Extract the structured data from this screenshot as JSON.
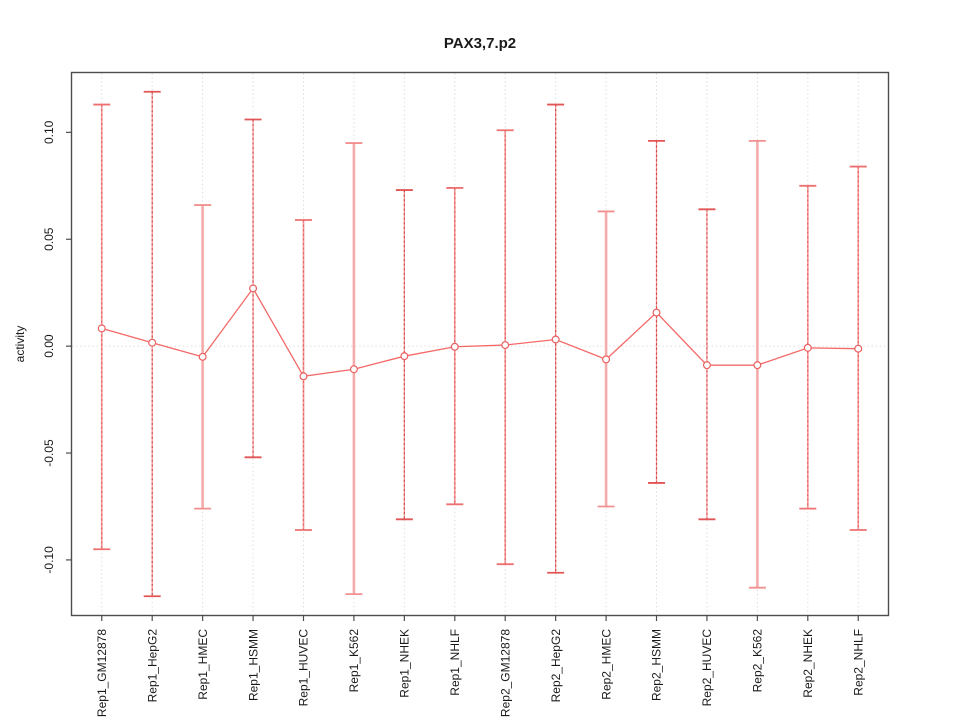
{
  "chart_data": {
    "type": "line",
    "title": "PAX3,7.p2",
    "ylabel": "activity",
    "xlabel": "",
    "marker": "open-circle",
    "legend": "none",
    "grid": {
      "vertical": "dotted light-gray line at each category",
      "horizontal": "dotted light-gray line at y=0 only"
    },
    "ylim": [
      -0.126,
      0.128
    ],
    "yticks": [
      {
        "value": 0.1,
        "label": "0.10"
      },
      {
        "value": 0.05,
        "label": "0.05"
      },
      {
        "value": 0.0,
        "label": "0.00"
      },
      {
        "value": -0.05,
        "label": "-0.05"
      },
      {
        "value": -0.1,
        "label": "-0.10"
      }
    ],
    "categories": [
      "Rep1_GM12878",
      "Rep1_HepG2",
      "Rep1_HMEC",
      "Rep1_HSMM",
      "Rep1_HUVEC",
      "Rep1_K562",
      "Rep1_NHEK",
      "Rep1_NHLF",
      "Rep2_GM12878",
      "Rep2_HepG2",
      "Rep2_HMEC",
      "Rep2_HSMM",
      "Rep2_HUVEC",
      "Rep2_K562",
      "Rep2_NHEK",
      "Rep2_NHLF"
    ],
    "series": [
      {
        "name": "activity",
        "color": "#f46868",
        "points": [
          {
            "category": "Rep1_GM12878",
            "value": 0.0083,
            "err_lo": -0.095,
            "err_hi": 0.113,
            "bar_weight": "mid"
          },
          {
            "category": "Rep1_HepG2",
            "value": 0.0016,
            "err_lo": -0.117,
            "err_hi": 0.119,
            "bar_weight": "thin"
          },
          {
            "category": "Rep1_HMEC",
            "value": -0.005,
            "err_lo": -0.076,
            "err_hi": 0.066,
            "bar_weight": "thick"
          },
          {
            "category": "Rep1_HSMM",
            "value": 0.027,
            "err_lo": -0.052,
            "err_hi": 0.106,
            "bar_weight": "thin"
          },
          {
            "category": "Rep1_HUVEC",
            "value": -0.0141,
            "err_lo": -0.086,
            "err_hi": 0.059,
            "bar_weight": "mid"
          },
          {
            "category": "Rep1_K562",
            "value": -0.0108,
            "err_lo": -0.116,
            "err_hi": 0.095,
            "bar_weight": "thick"
          },
          {
            "category": "Rep1_NHEK",
            "value": -0.0047,
            "err_lo": -0.081,
            "err_hi": 0.073,
            "bar_weight": "thin"
          },
          {
            "category": "Rep1_NHLF",
            "value": -0.0003,
            "err_lo": -0.074,
            "err_hi": 0.074,
            "bar_weight": "mid"
          },
          {
            "category": "Rep2_GM12878",
            "value": 0.0005,
            "err_lo": -0.102,
            "err_hi": 0.101,
            "bar_weight": "mid"
          },
          {
            "category": "Rep2_HepG2",
            "value": 0.0031,
            "err_lo": -0.106,
            "err_hi": 0.113,
            "bar_weight": "thin"
          },
          {
            "category": "Rep2_HMEC",
            "value": -0.0062,
            "err_lo": -0.075,
            "err_hi": 0.063,
            "bar_weight": "thick"
          },
          {
            "category": "Rep2_HSMM",
            "value": 0.0157,
            "err_lo": -0.064,
            "err_hi": 0.096,
            "bar_weight": "thin"
          },
          {
            "category": "Rep2_HUVEC",
            "value": -0.0089,
            "err_lo": -0.081,
            "err_hi": 0.064,
            "bar_weight": "thin"
          },
          {
            "category": "Rep2_K562",
            "value": -0.0089,
            "err_lo": -0.113,
            "err_hi": 0.096,
            "bar_weight": "thick"
          },
          {
            "category": "Rep2_NHEK",
            "value": -0.0008,
            "err_lo": -0.076,
            "err_hi": 0.075,
            "bar_weight": "mid"
          },
          {
            "category": "Rep2_NHLF",
            "value": -0.0012,
            "err_lo": -0.086,
            "err_hi": 0.084,
            "bar_weight": "mid"
          }
        ]
      }
    ]
  },
  "colors": {
    "line_red": "#f46868",
    "marker_red": "#ea5f5f",
    "error_bar_thin": "#d44545",
    "error_bar_mid": "#f59898",
    "error_bar_thick": "#f6abab",
    "gridline": "#dedede",
    "frame": "#4d4d4d",
    "text": "#1a1a1a",
    "background": "#ffffff"
  }
}
